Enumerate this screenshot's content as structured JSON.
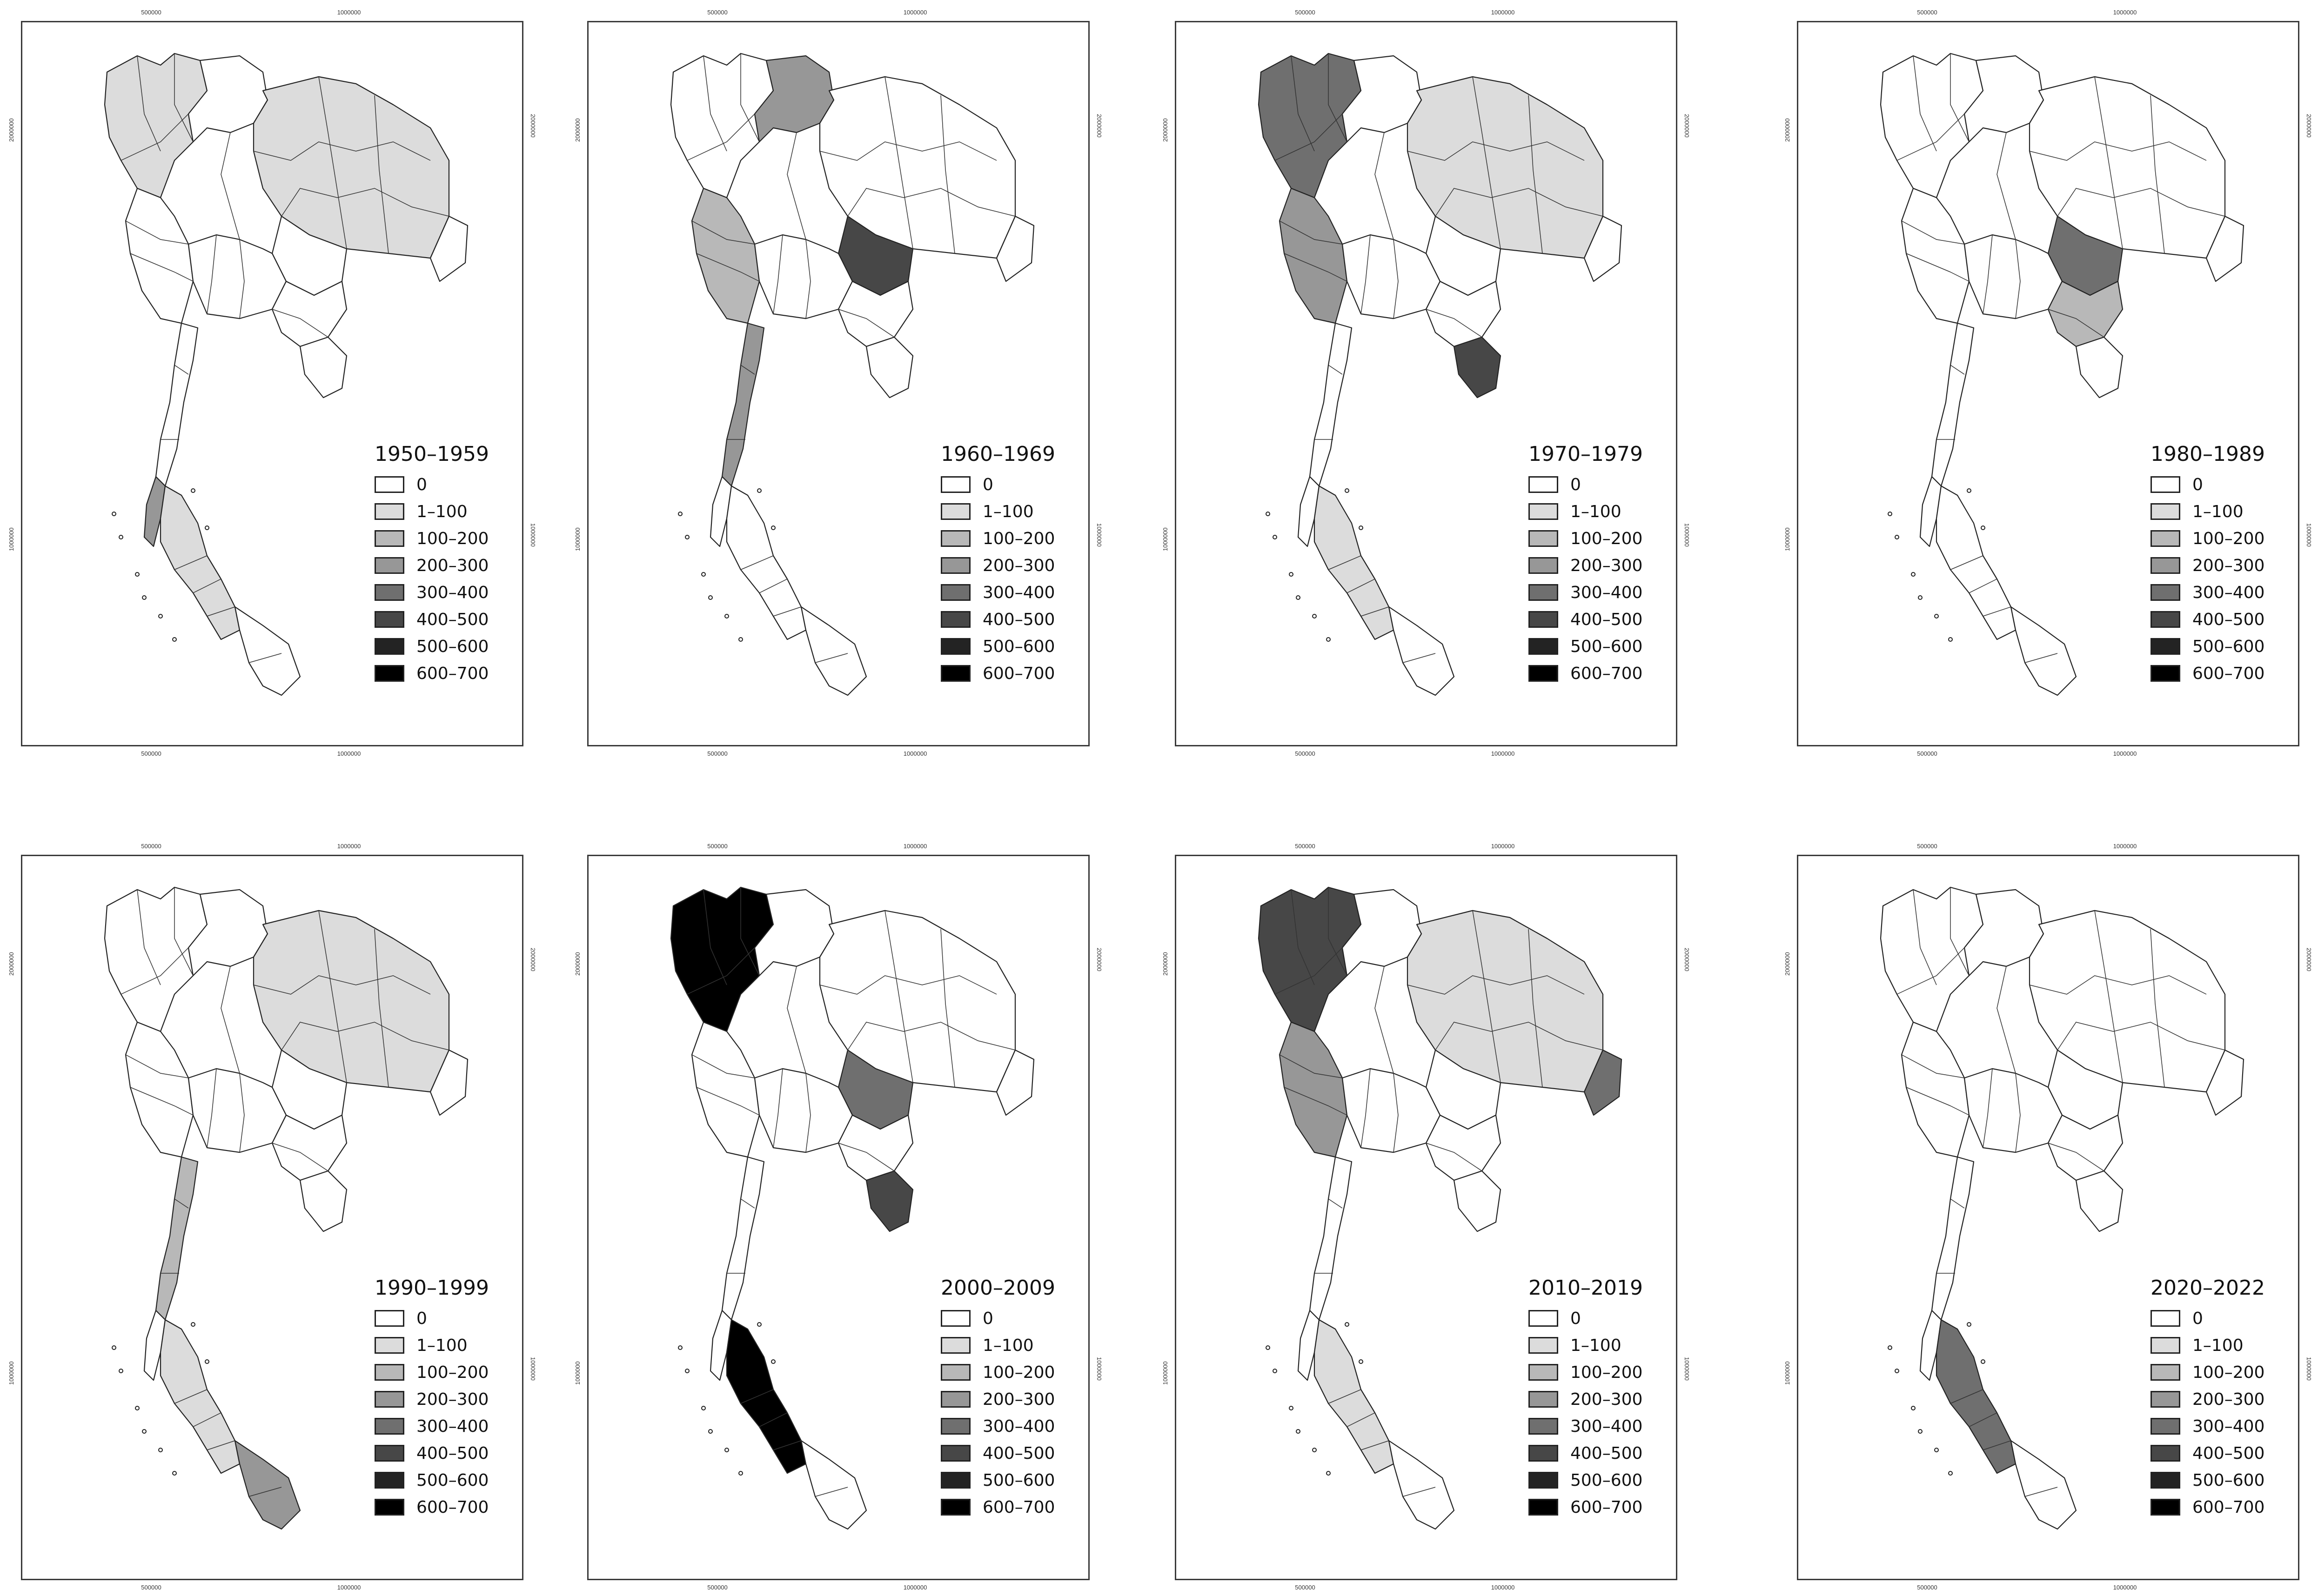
{
  "axis_ticks": {
    "top": [
      "500000",
      "1000000"
    ],
    "bottom": [
      "500000",
      "1000000"
    ],
    "left": [
      "2000000",
      "1000000"
    ],
    "right": [
      "2000000",
      "1000000"
    ]
  },
  "legend": {
    "classes": [
      "0",
      "1–100",
      "100–200",
      "200–300",
      "300–400",
      "400–500",
      "500–600",
      "600–700"
    ],
    "colors": [
      "#ffffff",
      "#dcdcdc",
      "#b8b8b8",
      "#979797",
      "#6f6f6f",
      "#474747",
      "#232323",
      "#000000"
    ]
  },
  "panels": [
    {
      "period": "1950–1959",
      "highlights": [
        {
          "region": "west-coast",
          "class": 3
        },
        {
          "region": "northwest",
          "class": 1
        },
        {
          "region": "northeast",
          "class": 1
        }
      ]
    },
    {
      "period": "1960–1969",
      "highlights": [
        {
          "region": "central-east",
          "class": 5
        },
        {
          "region": "north",
          "class": 3
        },
        {
          "region": "west",
          "class": 2
        },
        {
          "region": "isthmus",
          "class": 3
        }
      ]
    },
    {
      "period": "1970–1979",
      "highlights": [
        {
          "region": "northwest",
          "class": 4
        },
        {
          "region": "east-coast",
          "class": 5
        },
        {
          "region": "west",
          "class": 3
        }
      ]
    },
    {
      "period": "1980–1989",
      "highlights": [
        {
          "region": "central-east",
          "class": 4
        },
        {
          "region": "east",
          "class": 2
        }
      ]
    },
    {
      "period": "1990–1999",
      "highlights": [
        {
          "region": "south-tip",
          "class": 3
        },
        {
          "region": "isthmus",
          "class": 2
        }
      ]
    },
    {
      "period": "2000–2009",
      "highlights": [
        {
          "region": "northwest",
          "class": 7
        },
        {
          "region": "south",
          "class": 7
        },
        {
          "region": "central-east",
          "class": 4
        },
        {
          "region": "east-coast",
          "class": 5
        }
      ]
    },
    {
      "period": "2010–2019",
      "highlights": [
        {
          "region": "northwest",
          "class": 5
        },
        {
          "region": "far-east",
          "class": 4
        },
        {
          "region": "west",
          "class": 3
        }
      ]
    },
    {
      "period": "2020–2022",
      "highlights": [
        {
          "region": "south",
          "class": 4
        }
      ]
    }
  ]
}
